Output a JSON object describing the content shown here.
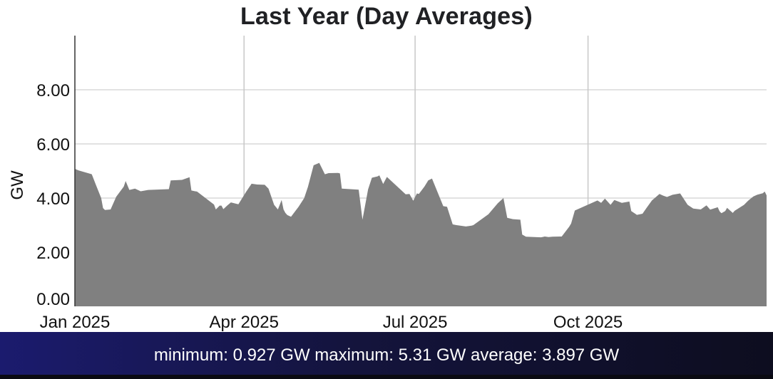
{
  "chart_data": {
    "type": "area",
    "title": "Last Year (Day Averages)",
    "ylabel": "GW",
    "xlabel": "",
    "ylim": [
      0,
      10
    ],
    "y_ticks": [
      0,
      2,
      4,
      6,
      8
    ],
    "y_tick_labels": [
      "0.00",
      "2.00",
      "4.00",
      "6.00",
      "8.00"
    ],
    "x_range": [
      "2025-01-01",
      "2026-01-04"
    ],
    "x_ticks": [
      {
        "date": "2025-01-01",
        "label": "Jan 2025"
      },
      {
        "date": "2025-04-01",
        "label": "Apr 2025"
      },
      {
        "date": "2025-07-01",
        "label": "Jul 2025"
      },
      {
        "date": "2025-10-01",
        "label": "Oct 2025"
      }
    ],
    "grid": true,
    "fill_color": "#808080",
    "series": [
      {
        "x": [
          "2025-01-01",
          "2025-01-03",
          "2025-01-10",
          "2025-01-12",
          "2025-01-15",
          "2025-01-16",
          "2025-01-17",
          "2025-01-20",
          "2025-01-23",
          "2025-01-27",
          "2025-01-28",
          "2025-01-30",
          "2025-02-02",
          "2025-02-05",
          "2025-02-09",
          "2025-02-20",
          "2025-02-21",
          "2025-02-27",
          "2025-03-03",
          "2025-03-04",
          "2025-03-06",
          "2025-03-07",
          "2025-03-16",
          "2025-03-17",
          "2025-03-19",
          "2025-03-20",
          "2025-03-21",
          "2025-03-23",
          "2025-03-25",
          "2025-03-29",
          "2025-04-02",
          "2025-04-05",
          "2025-04-08",
          "2025-04-12",
          "2025-04-14",
          "2025-04-17",
          "2025-04-19",
          "2025-04-21",
          "2025-04-22",
          "2025-04-23",
          "2025-04-24",
          "2025-04-26",
          "2025-04-30",
          "2025-05-03",
          "2025-05-05",
          "2025-05-08",
          "2025-05-11",
          "2025-05-14",
          "2025-05-16",
          "2025-05-21",
          "2025-05-22",
          "2025-05-23",
          "2025-06-01",
          "2025-06-03",
          "2025-06-06",
          "2025-06-08",
          "2025-06-11",
          "2025-06-12",
          "2025-06-14",
          "2025-06-16",
          "2025-06-26",
          "2025-06-28",
          "2025-06-30",
          "2025-07-02",
          "2025-07-03",
          "2025-07-06",
          "2025-07-08",
          "2025-07-10",
          "2025-07-16",
          "2025-07-18",
          "2025-07-21",
          "2025-07-23",
          "2025-07-25",
          "2025-07-28",
          "2025-07-31",
          "2025-08-01",
          "2025-08-09",
          "2025-08-14",
          "2025-08-17",
          "2025-08-19",
          "2025-08-22",
          "2025-08-26",
          "2025-08-27",
          "2025-08-29",
          "2025-09-06",
          "2025-09-08",
          "2025-09-10",
          "2025-09-12",
          "2025-09-16",
          "2025-09-17",
          "2025-09-21",
          "2025-09-22",
          "2025-09-24",
          "2025-10-06",
          "2025-10-08",
          "2025-10-10",
          "2025-10-13",
          "2025-10-15",
          "2025-10-19",
          "2025-10-23",
          "2025-10-24",
          "2025-10-27",
          "2025-10-30",
          "2025-11-01",
          "2025-11-04",
          "2025-11-08",
          "2025-11-10",
          "2025-11-12",
          "2025-11-15",
          "2025-11-19",
          "2025-11-23",
          "2025-11-26",
          "2025-11-30",
          "2025-12-03",
          "2025-12-05",
          "2025-12-09",
          "2025-12-10",
          "2025-12-11",
          "2025-12-13",
          "2025-12-14",
          "2025-12-17",
          "2025-12-18",
          "2025-12-23",
          "2025-12-25",
          "2025-12-26",
          "2025-12-28",
          "2025-12-30",
          "2026-01-02",
          "2026-01-03",
          "2026-01-04"
        ],
        "y": [
          5.08,
          5.02,
          4.88,
          4.52,
          4.0,
          3.63,
          3.56,
          3.58,
          4.05,
          4.42,
          4.63,
          4.3,
          4.35,
          4.25,
          4.3,
          4.33,
          4.65,
          4.67,
          4.77,
          4.28,
          4.25,
          4.24,
          3.76,
          3.58,
          3.72,
          3.72,
          3.59,
          3.72,
          3.84,
          3.77,
          4.22,
          4.53,
          4.5,
          4.49,
          4.35,
          3.75,
          3.58,
          3.93,
          3.58,
          3.45,
          3.37,
          3.31,
          3.68,
          4.0,
          4.41,
          5.21,
          5.3,
          4.88,
          4.92,
          4.93,
          4.91,
          4.35,
          4.31,
          3.2,
          4.32,
          4.75,
          4.8,
          4.84,
          4.52,
          4.78,
          4.14,
          4.15,
          3.9,
          4.17,
          4.15,
          4.43,
          4.65,
          4.72,
          3.7,
          3.68,
          3.03,
          3.0,
          2.98,
          2.95,
          2.98,
          3.0,
          3.4,
          3.81,
          4.0,
          3.27,
          3.22,
          3.2,
          2.65,
          2.57,
          2.55,
          2.58,
          2.56,
          2.57,
          2.58,
          2.58,
          2.94,
          3.06,
          3.54,
          3.91,
          3.82,
          3.98,
          3.75,
          3.93,
          3.82,
          3.87,
          3.52,
          3.38,
          3.42,
          3.62,
          3.91,
          4.15,
          4.09,
          4.04,
          4.12,
          4.17,
          3.75,
          3.61,
          3.58,
          3.73,
          3.57,
          3.66,
          3.51,
          3.44,
          3.52,
          3.64,
          3.45,
          3.53,
          3.75,
          3.89,
          3.95,
          4.06,
          4.12,
          4.18,
          4.24,
          4.1
        ]
      }
    ]
  },
  "stats": {
    "minimum_label": "minimum:",
    "minimum_value": "0.927 GW",
    "maximum_label": "maximum:",
    "maximum_value": "5.31 GW",
    "average_label": "average:",
    "average_value": "3.897 GW"
  }
}
